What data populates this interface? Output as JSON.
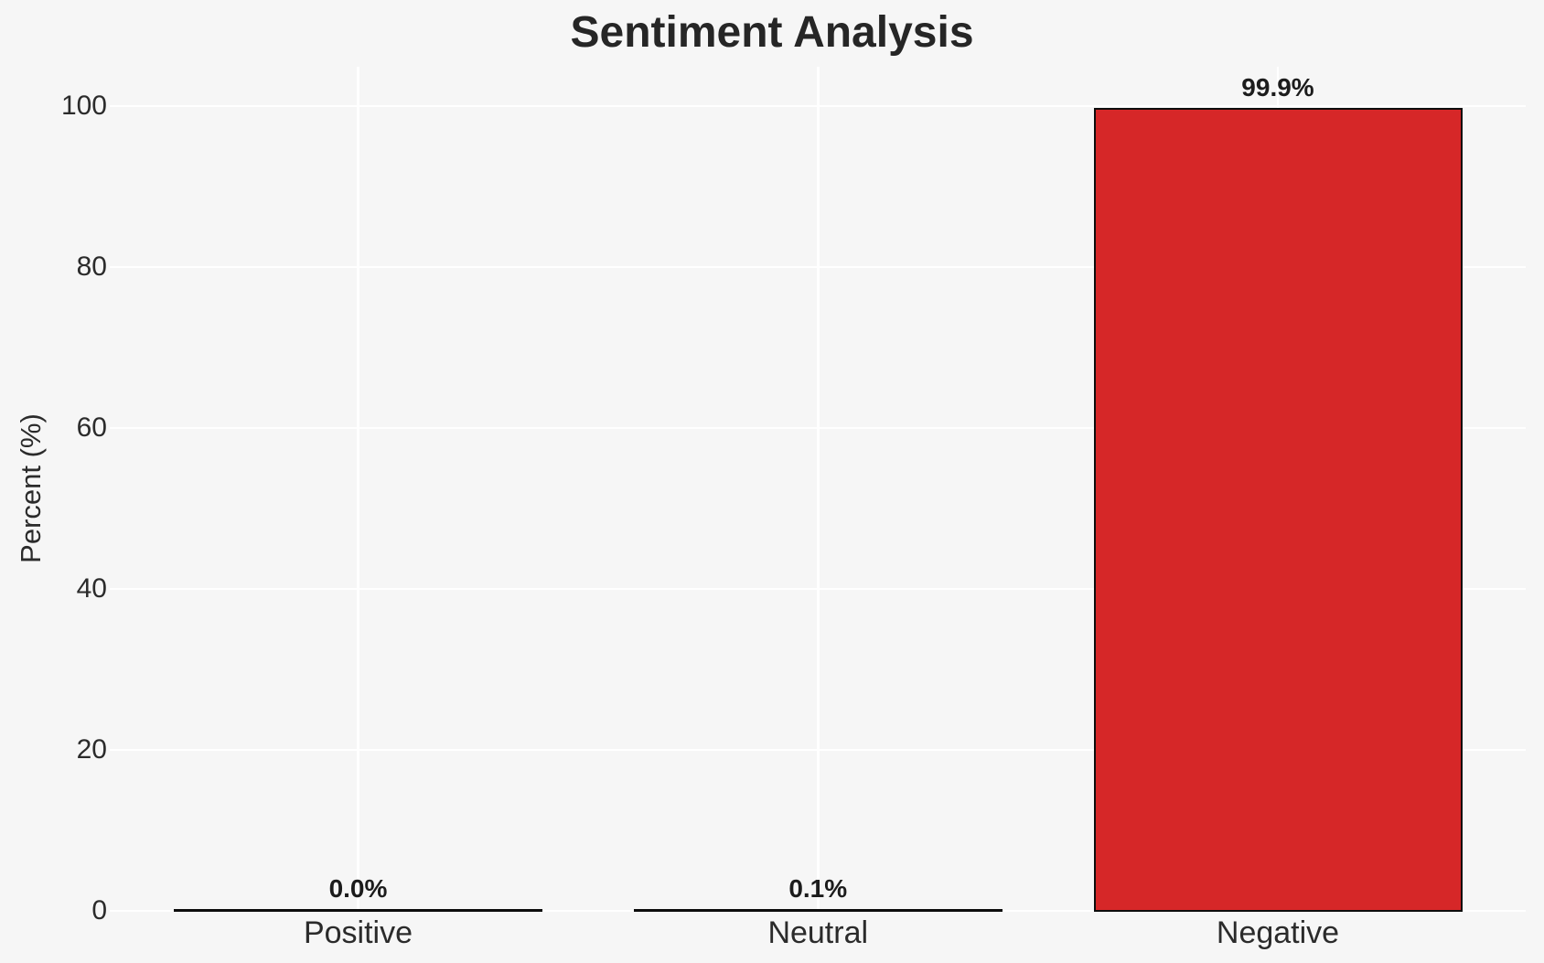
{
  "chart_data": {
    "type": "bar",
    "title": "Sentiment Analysis",
    "xlabel": "",
    "ylabel": "Percent (%)",
    "categories": [
      "Positive",
      "Neutral",
      "Negative"
    ],
    "values": [
      0.0,
      0.1,
      99.9
    ],
    "value_labels": [
      "0.0%",
      "0.1%",
      "99.9%"
    ],
    "y_ticks": [
      0,
      20,
      40,
      60,
      80,
      100
    ],
    "ylim": [
      0,
      100
    ],
    "grid": true,
    "legend": false,
    "colors": {
      "background": "#f6f6f6",
      "gridline": "#ffffff",
      "bar_fill": "#d62728",
      "bar_edge": "#0d0d0d",
      "title_text": "#262626",
      "tick_text": "#2b2b2b"
    }
  }
}
